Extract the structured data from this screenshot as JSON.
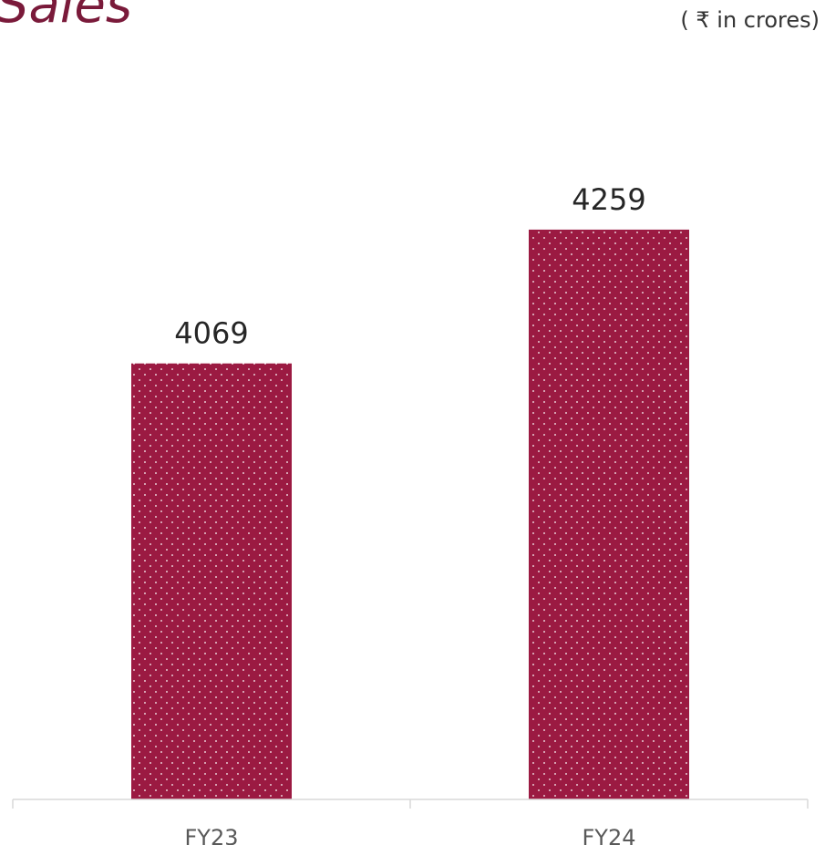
{
  "header": {
    "title": "Sales",
    "unit": "( ₹ in crores)"
  },
  "colors": {
    "bar": "#9b1a42",
    "dots": "#ffffff",
    "axis": "#d9d9d9"
  },
  "chart_data": {
    "type": "bar",
    "title": "Sales",
    "xlabel": "",
    "ylabel": "",
    "categories": [
      "FY23",
      "FY24"
    ],
    "values": [
      4069,
      4259
    ],
    "ylim": [
      3450,
      4365
    ],
    "grid": false,
    "legend": "none"
  }
}
